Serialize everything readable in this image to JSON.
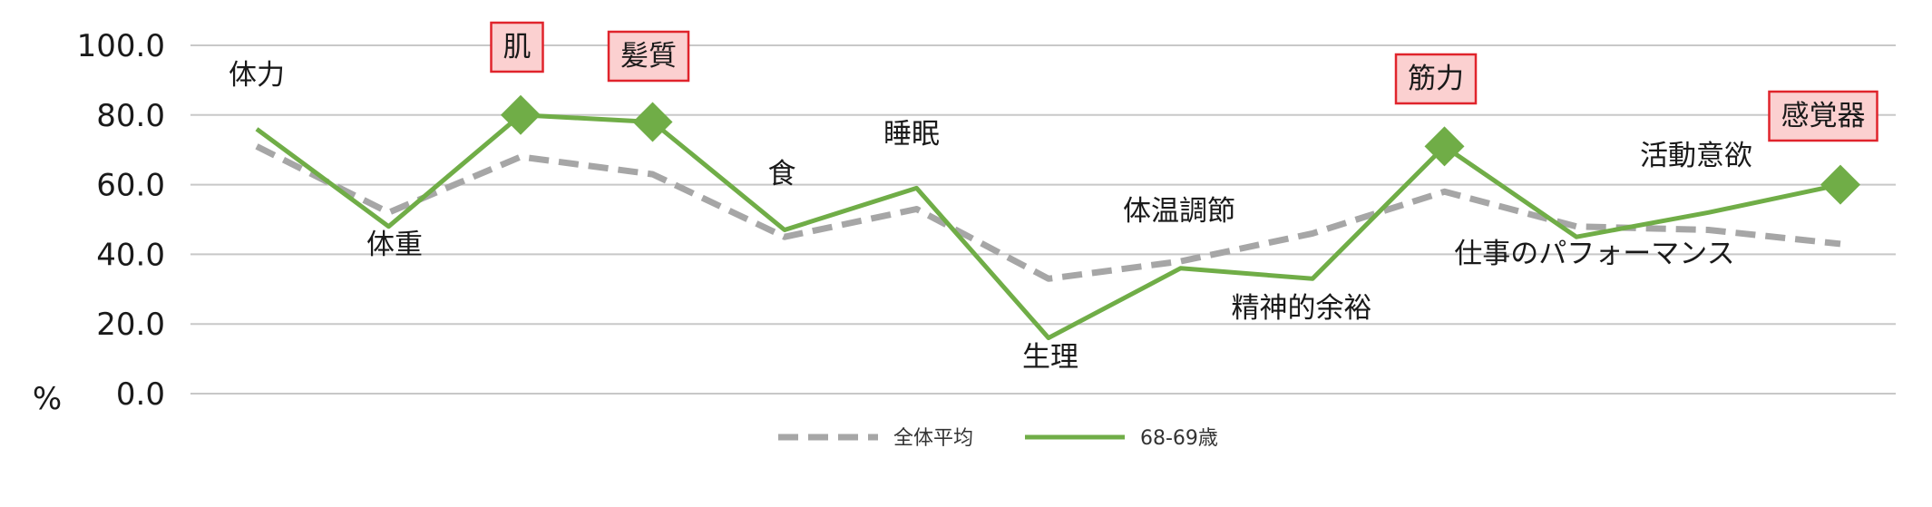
{
  "chart_data": {
    "type": "line",
    "title": "",
    "xlabel": "",
    "ylabel": "%",
    "ylim": [
      0,
      100
    ],
    "yticks": [
      "100.0",
      "80.0",
      "60.0",
      "40.0",
      "20.0",
      "0.0"
    ],
    "grid": true,
    "legend_position": "bottom",
    "categories": [
      "体力",
      "体重",
      "肌",
      "髪質",
      "食",
      "睡眠",
      "生理",
      "体温調節",
      "精神的余裕",
      "筋力",
      "仕事のパフォーマンス",
      "活動意欲",
      "感覚器"
    ],
    "highlighted_categories": [
      "肌",
      "髪質",
      "筋力",
      "感覚器"
    ],
    "series": [
      {
        "name": "全体平均",
        "values": [
          71,
          52,
          68,
          63,
          45,
          53,
          33,
          38,
          46,
          58,
          48,
          47,
          43
        ],
        "color": "#a6a6a6",
        "style": "dashed"
      },
      {
        "name": "68-69歳",
        "values": [
          76,
          48,
          80,
          78,
          47,
          59,
          16,
          36,
          33,
          71,
          45,
          52,
          60
        ],
        "color": "#70ad47",
        "style": "solid",
        "markers_at": [
          "肌",
          "髪質",
          "筋力",
          "感覚器"
        ]
      }
    ],
    "colors": {
      "highlight_fill": "#fbd0d0",
      "highlight_border": "#e0242c",
      "grid": "#c8c8c8"
    }
  }
}
